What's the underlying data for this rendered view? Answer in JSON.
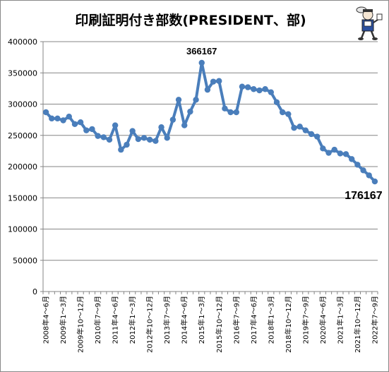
{
  "chart_data": {
    "type": "line",
    "title": "印刷証明付き部数(PRESIDENT、部)",
    "xlabel": "",
    "ylabel": "",
    "ylim": [
      0,
      400000
    ],
    "yticks": [
      0,
      50000,
      100000,
      150000,
      200000,
      250000,
      300000,
      350000,
      400000
    ],
    "grid": true,
    "legend": "none",
    "line_color": "#4a7ebb",
    "x_tick_labels": [
      "2008年4～6月",
      "2009年1～3月",
      "2009年10～12月",
      "2010年7～9月",
      "2011年4～6月",
      "2012年1～3月",
      "2012年10～12月",
      "2013年7～9月",
      "2014年4～6月",
      "2015年1～3月",
      "2015年10～12月",
      "2016年7～9月",
      "2017年4～6月",
      "2018年1～3月",
      "2018年10～12月",
      "2019年7～9月",
      "2020年4～6月",
      "2021年1～3月",
      "2021年10～12月",
      "2022年7～9月"
    ],
    "series": [
      {
        "values": [
          287000,
          277000,
          277000,
          274000,
          280000,
          268000,
          271000,
          258000,
          260000,
          249000,
          247000,
          243000,
          266000,
          227000,
          235000,
          257000,
          244000,
          246000,
          243000,
          241000,
          263000,
          246000,
          275000,
          307000,
          266000,
          288000,
          307000,
          366167,
          323000,
          336000,
          337000,
          293000,
          287000,
          287000,
          328000,
          327000,
          324000,
          322000,
          324000,
          319000,
          303000,
          287000,
          284000,
          262000,
          264000,
          258000,
          252000,
          248000,
          229000,
          222000,
          227000,
          221000,
          220000,
          212000,
          203000,
          194000,
          186000,
          176167
        ]
      }
    ],
    "annotations": [
      {
        "text": "366167",
        "index": 27
      },
      {
        "text": "176167",
        "index": 57
      }
    ]
  }
}
